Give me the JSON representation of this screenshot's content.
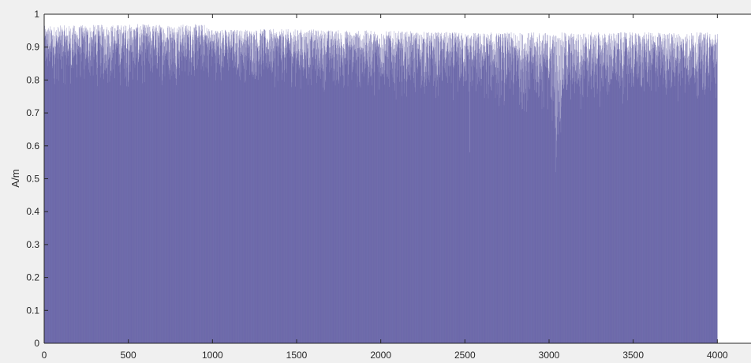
{
  "chart_data": {
    "type": "bar",
    "title": "",
    "xlabel": "",
    "ylabel": "A/m",
    "xlim": [
      0,
      4200
    ],
    "ylim": [
      0,
      1
    ],
    "n_points": 4000,
    "series_color": "#4b4896",
    "xticks": [
      "0",
      "500",
      "1000",
      "1500",
      "2000",
      "2500",
      "3000",
      "3500",
      "4000"
    ],
    "yticks": [
      "0",
      "0.1",
      "0.2",
      "0.3",
      "0.4",
      "0.5",
      "0.6",
      "0.7",
      "0.8",
      "0.9",
      "1"
    ],
    "upper_envelope": [
      {
        "x": 0,
        "y": 0.965
      },
      {
        "x": 500,
        "y": 0.97
      },
      {
        "x": 950,
        "y": 0.97
      },
      {
        "x": 1000,
        "y": 0.955
      },
      {
        "x": 1500,
        "y": 0.955
      },
      {
        "x": 2000,
        "y": 0.95
      },
      {
        "x": 2500,
        "y": 0.945
      },
      {
        "x": 3000,
        "y": 0.945
      },
      {
        "x": 3500,
        "y": 0.945
      },
      {
        "x": 4000,
        "y": 0.945
      }
    ],
    "lower_envelope": [
      {
        "x": 0,
        "y": 0.77
      },
      {
        "x": 500,
        "y": 0.76
      },
      {
        "x": 1000,
        "y": 0.79
      },
      {
        "x": 1500,
        "y": 0.76
      },
      {
        "x": 2000,
        "y": 0.74
      },
      {
        "x": 2500,
        "y": 0.72
      },
      {
        "x": 3000,
        "y": 0.67
      },
      {
        "x": 3050,
        "y": 0.52
      },
      {
        "x": 3100,
        "y": 0.68
      },
      {
        "x": 3500,
        "y": 0.72
      },
      {
        "x": 4000,
        "y": 0.73
      }
    ],
    "notable_dips": [
      {
        "x": 2530,
        "y": 0.58
      },
      {
        "x": 3040,
        "y": 0.52
      }
    ]
  }
}
